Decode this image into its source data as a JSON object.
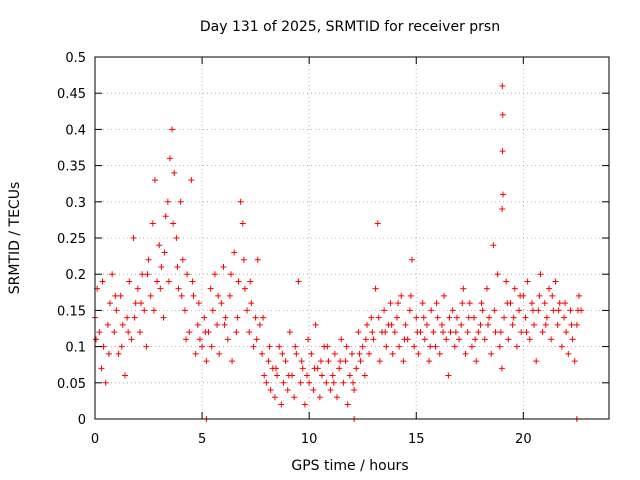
{
  "chart_data": {
    "type": "scatter",
    "title": "Day 131 of 2025, SRMTID for receiver prsn",
    "xlabel": "GPS time / hours",
    "ylabel": "SRMTID / TECUs",
    "xlim": [
      0,
      24
    ],
    "ylim": [
      0,
      0.5
    ],
    "xticks": [
      0,
      5,
      10,
      15,
      20
    ],
    "xtick_labels": [
      "0",
      "5",
      "10",
      "15",
      "20"
    ],
    "yticks": [
      0,
      0.05,
      0.1,
      0.15,
      0.2,
      0.25,
      0.3,
      0.35,
      0.4,
      0.45,
      0.5
    ],
    "ytick_labels": [
      "0",
      "0.05",
      "0.1",
      "0.15",
      "0.2",
      "0.25",
      "0.3",
      "0.35",
      "0.4",
      "0.45",
      "0.5"
    ],
    "grid": true,
    "marker": "+",
    "color": "#ff0000",
    "series": [
      {
        "name": "SRMTID",
        "points": [
          [
            0.0,
            0.14
          ],
          [
            0.1,
            0.18
          ],
          [
            0.2,
            0.12
          ],
          [
            0.3,
            0.07
          ],
          [
            0.4,
            0.1
          ],
          [
            0.5,
            0.05
          ],
          [
            0.6,
            0.13
          ],
          [
            0.7,
            0.16
          ],
          [
            0.8,
            0.2
          ],
          [
            0.9,
            0.12
          ],
          [
            1.0,
            0.15
          ],
          [
            1.1,
            0.09
          ],
          [
            1.2,
            0.17
          ],
          [
            1.3,
            0.13
          ],
          [
            1.4,
            0.06
          ],
          [
            1.5,
            0.14
          ],
          [
            1.6,
            0.19
          ],
          [
            1.7,
            0.11
          ],
          [
            1.8,
            0.25
          ],
          [
            1.9,
            0.16
          ],
          [
            2.0,
            0.18
          ],
          [
            2.1,
            0.12
          ],
          [
            2.2,
            0.2
          ],
          [
            2.3,
            0.15
          ],
          [
            2.4,
            0.1
          ],
          [
            2.5,
            0.22
          ],
          [
            2.6,
            0.17
          ],
          [
            2.7,
            0.27
          ],
          [
            2.8,
            0.33
          ],
          [
            2.9,
            0.19
          ],
          [
            3.0,
            0.24
          ],
          [
            3.1,
            0.21
          ],
          [
            3.2,
            0.14
          ],
          [
            3.3,
            0.28
          ],
          [
            3.4,
            0.3
          ],
          [
            3.5,
            0.36
          ],
          [
            3.6,
            0.4
          ],
          [
            3.7,
            0.34
          ],
          [
            3.8,
            0.25
          ],
          [
            3.9,
            0.18
          ],
          [
            4.0,
            0.3
          ],
          [
            4.1,
            0.22
          ],
          [
            4.2,
            0.15
          ],
          [
            4.3,
            0.2
          ],
          [
            4.4,
            0.12
          ],
          [
            4.5,
            0.33
          ],
          [
            4.6,
            0.17
          ],
          [
            4.7,
            0.09
          ],
          [
            4.8,
            0.13
          ],
          [
            4.9,
            0.11
          ],
          [
            5.0,
            0.1
          ],
          [
            5.1,
            0.14
          ],
          [
            5.2,
            0.08
          ],
          [
            5.3,
            0.12
          ],
          [
            5.4,
            0.18
          ],
          [
            5.5,
            0.15
          ],
          [
            5.6,
            0.2
          ],
          [
            5.7,
            0.13
          ],
          [
            5.8,
            0.09
          ],
          [
            5.9,
            0.16
          ],
          [
            6.0,
            0.21
          ],
          [
            6.1,
            0.14
          ],
          [
            6.2,
            0.11
          ],
          [
            6.3,
            0.17
          ],
          [
            6.4,
            0.08
          ],
          [
            6.5,
            0.23
          ],
          [
            6.6,
            0.12
          ],
          [
            6.7,
            0.19
          ],
          [
            6.8,
            0.3
          ],
          [
            6.9,
            0.27
          ],
          [
            7.0,
            0.18
          ],
          [
            7.1,
            0.15
          ],
          [
            7.2,
            0.12
          ],
          [
            7.3,
            0.16
          ],
          [
            7.4,
            0.1
          ],
          [
            7.5,
            0.14
          ],
          [
            7.6,
            0.22
          ],
          [
            7.7,
            0.13
          ],
          [
            7.8,
            0.09
          ],
          [
            7.9,
            0.06
          ],
          [
            8.0,
            0.05
          ],
          [
            8.1,
            0.08
          ],
          [
            8.2,
            0.04
          ],
          [
            8.3,
            0.07
          ],
          [
            8.4,
            0.03
          ],
          [
            8.5,
            0.06
          ],
          [
            8.6,
            0.1
          ],
          [
            8.7,
            0.02
          ],
          [
            8.8,
            0.05
          ],
          [
            8.9,
            0.08
          ],
          [
            9.0,
            0.04
          ],
          [
            9.1,
            0.12
          ],
          [
            9.2,
            0.06
          ],
          [
            9.3,
            0.03
          ],
          [
            9.4,
            0.09
          ],
          [
            9.5,
            0.19
          ],
          [
            9.6,
            0.05
          ],
          [
            9.7,
            0.07
          ],
          [
            9.8,
            0.02
          ],
          [
            9.9,
            0.06
          ],
          [
            10.0,
            0.05
          ],
          [
            10.1,
            0.09
          ],
          [
            10.2,
            0.04
          ],
          [
            10.3,
            0.13
          ],
          [
            10.4,
            0.07
          ],
          [
            10.5,
            0.03
          ],
          [
            10.6,
            0.06
          ],
          [
            10.7,
            0.1
          ],
          [
            10.8,
            0.05
          ],
          [
            10.9,
            0.08
          ],
          [
            11.0,
            0.04
          ],
          [
            11.1,
            0.06
          ],
          [
            11.2,
            0.09
          ],
          [
            11.3,
            0.03
          ],
          [
            11.4,
            0.07
          ],
          [
            11.5,
            0.11
          ],
          [
            11.6,
            0.05
          ],
          [
            11.7,
            0.08
          ],
          [
            11.8,
            0.02
          ],
          [
            11.9,
            0.06
          ],
          [
            12.0,
            0.09
          ],
          [
            12.1,
            0.04
          ],
          [
            12.2,
            0.07
          ],
          [
            12.3,
            0.12
          ],
          [
            12.4,
            0.08
          ],
          [
            12.5,
            0.1
          ],
          [
            12.6,
            0.06
          ],
          [
            12.7,
            0.13
          ],
          [
            12.8,
            0.09
          ],
          [
            12.9,
            0.14
          ],
          [
            13.0,
            0.11
          ],
          [
            13.1,
            0.18
          ],
          [
            13.2,
            0.27
          ],
          [
            13.3,
            0.08
          ],
          [
            13.4,
            0.12
          ],
          [
            13.5,
            0.15
          ],
          [
            13.6,
            0.1
          ],
          [
            13.7,
            0.13
          ],
          [
            13.8,
            0.16
          ],
          [
            13.9,
            0.09
          ],
          [
            14.0,
            0.12
          ],
          [
            14.1,
            0.14
          ],
          [
            14.2,
            0.1
          ],
          [
            14.3,
            0.17
          ],
          [
            14.4,
            0.08
          ],
          [
            14.5,
            0.13
          ],
          [
            14.6,
            0.11
          ],
          [
            14.7,
            0.15
          ],
          [
            14.8,
            0.22
          ],
          [
            14.9,
            0.1
          ],
          [
            15.0,
            0.14
          ],
          [
            15.1,
            0.09
          ],
          [
            15.2,
            0.12
          ],
          [
            15.3,
            0.16
          ],
          [
            15.4,
            0.11
          ],
          [
            15.5,
            0.13
          ],
          [
            15.6,
            0.08
          ],
          [
            15.7,
            0.15
          ],
          [
            15.8,
            0.12
          ],
          [
            15.9,
            0.1
          ],
          [
            16.0,
            0.14
          ],
          [
            16.1,
            0.09
          ],
          [
            16.2,
            0.13
          ],
          [
            16.3,
            0.17
          ],
          [
            16.4,
            0.11
          ],
          [
            16.5,
            0.06
          ],
          [
            16.6,
            0.12
          ],
          [
            16.7,
            0.15
          ],
          [
            16.8,
            0.1
          ],
          [
            16.9,
            0.14
          ],
          [
            17.0,
            0.11
          ],
          [
            17.1,
            0.13
          ],
          [
            17.2,
            0.18
          ],
          [
            17.3,
            0.09
          ],
          [
            17.4,
            0.12
          ],
          [
            17.5,
            0.16
          ],
          [
            17.6,
            0.1
          ],
          [
            17.7,
            0.14
          ],
          [
            17.8,
            0.08
          ],
          [
            17.9,
            0.12
          ],
          [
            18.0,
            0.13
          ],
          [
            18.1,
            0.15
          ],
          [
            18.2,
            0.11
          ],
          [
            18.3,
            0.18
          ],
          [
            18.4,
            0.14
          ],
          [
            18.5,
            0.09
          ],
          [
            18.6,
            0.24
          ],
          [
            18.7,
            0.12
          ],
          [
            18.8,
            0.2
          ],
          [
            18.9,
            0.1
          ],
          [
            19.0,
            0.07
          ],
          [
            19.02,
            0.46
          ],
          [
            19.04,
            0.42
          ],
          [
            19.03,
            0.37
          ],
          [
            19.05,
            0.31
          ],
          [
            19.01,
            0.29
          ],
          [
            19.1,
            0.14
          ],
          [
            19.2,
            0.19
          ],
          [
            19.3,
            0.11
          ],
          [
            19.4,
            0.16
          ],
          [
            19.5,
            0.13
          ],
          [
            19.6,
            0.18
          ],
          [
            19.7,
            0.1
          ],
          [
            19.8,
            0.15
          ],
          [
            19.9,
            0.12
          ],
          [
            20.0,
            0.17
          ],
          [
            20.1,
            0.14
          ],
          [
            20.2,
            0.19
          ],
          [
            20.3,
            0.11
          ],
          [
            20.4,
            0.16
          ],
          [
            20.5,
            0.13
          ],
          [
            20.6,
            0.08
          ],
          [
            20.7,
            0.15
          ],
          [
            20.8,
            0.2
          ],
          [
            20.9,
            0.12
          ],
          [
            21.0,
            0.16
          ],
          [
            21.1,
            0.14
          ],
          [
            21.2,
            0.18
          ],
          [
            21.3,
            0.11
          ],
          [
            21.4,
            0.15
          ],
          [
            21.5,
            0.19
          ],
          [
            21.6,
            0.13
          ],
          [
            21.7,
            0.16
          ],
          [
            21.8,
            0.1
          ],
          [
            21.9,
            0.14
          ],
          [
            22.0,
            0.12
          ],
          [
            22.1,
            0.09
          ],
          [
            22.2,
            0.15
          ],
          [
            22.3,
            0.11
          ],
          [
            22.4,
            0.08
          ],
          [
            22.5,
            0.13
          ],
          [
            22.6,
            0.17
          ],
          [
            22.7,
            0.15
          ],
          [
            0.05,
            0.11
          ],
          [
            0.35,
            0.19
          ],
          [
            0.65,
            0.09
          ],
          [
            0.95,
            0.17
          ],
          [
            1.25,
            0.1
          ],
          [
            1.55,
            0.12
          ],
          [
            1.85,
            0.14
          ],
          [
            2.15,
            0.16
          ],
          [
            2.45,
            0.2
          ],
          [
            2.75,
            0.15
          ],
          [
            3.05,
            0.18
          ],
          [
            3.25,
            0.23
          ],
          [
            3.45,
            0.19
          ],
          [
            3.65,
            0.27
          ],
          [
            3.85,
            0.21
          ],
          [
            4.05,
            0.17
          ],
          [
            4.25,
            0.11
          ],
          [
            4.55,
            0.19
          ],
          [
            4.85,
            0.16
          ],
          [
            5.15,
            0.12
          ],
          [
            5.45,
            0.1
          ],
          [
            5.75,
            0.17
          ],
          [
            6.05,
            0.13
          ],
          [
            6.35,
            0.2
          ],
          [
            6.65,
            0.14
          ],
          [
            6.95,
            0.22
          ],
          [
            7.25,
            0.19
          ],
          [
            7.55,
            0.11
          ],
          [
            7.85,
            0.14
          ],
          [
            8.15,
            0.1
          ],
          [
            8.45,
            0.07
          ],
          [
            8.75,
            0.09
          ],
          [
            9.05,
            0.06
          ],
          [
            9.35,
            0.1
          ],
          [
            9.65,
            0.08
          ],
          [
            9.95,
            0.11
          ],
          [
            10.25,
            0.07
          ],
          [
            10.55,
            0.08
          ],
          [
            10.85,
            0.1
          ],
          [
            11.15,
            0.05
          ],
          [
            11.45,
            0.08
          ],
          [
            11.75,
            0.1
          ],
          [
            12.05,
            0.05
          ],
          [
            12.35,
            0.09
          ],
          [
            12.65,
            0.11
          ],
          [
            12.95,
            0.12
          ],
          [
            13.25,
            0.14
          ],
          [
            13.55,
            0.12
          ],
          [
            13.85,
            0.13
          ],
          [
            14.15,
            0.16
          ],
          [
            14.45,
            0.11
          ],
          [
            14.75,
            0.17
          ],
          [
            15.05,
            0.12
          ],
          [
            15.35,
            0.14
          ],
          [
            15.65,
            0.1
          ],
          [
            15.95,
            0.16
          ],
          [
            16.25,
            0.12
          ],
          [
            16.55,
            0.14
          ],
          [
            16.85,
            0.12
          ],
          [
            17.15,
            0.16
          ],
          [
            17.45,
            0.14
          ],
          [
            17.75,
            0.11
          ],
          [
            18.05,
            0.16
          ],
          [
            18.35,
            0.13
          ],
          [
            18.65,
            0.15
          ],
          [
            18.95,
            0.12
          ],
          [
            19.25,
            0.16
          ],
          [
            19.55,
            0.14
          ],
          [
            19.85,
            0.17
          ],
          [
            20.15,
            0.12
          ],
          [
            20.45,
            0.15
          ],
          [
            20.75,
            0.17
          ],
          [
            21.05,
            0.13
          ],
          [
            21.35,
            0.17
          ],
          [
            21.65,
            0.15
          ],
          [
            21.95,
            0.16
          ],
          [
            22.25,
            0.13
          ],
          [
            22.55,
            0.15
          ],
          [
            5.2,
            0.0
          ],
          [
            12.1,
            0.0
          ],
          [
            22.5,
            0.0
          ]
        ]
      }
    ]
  }
}
